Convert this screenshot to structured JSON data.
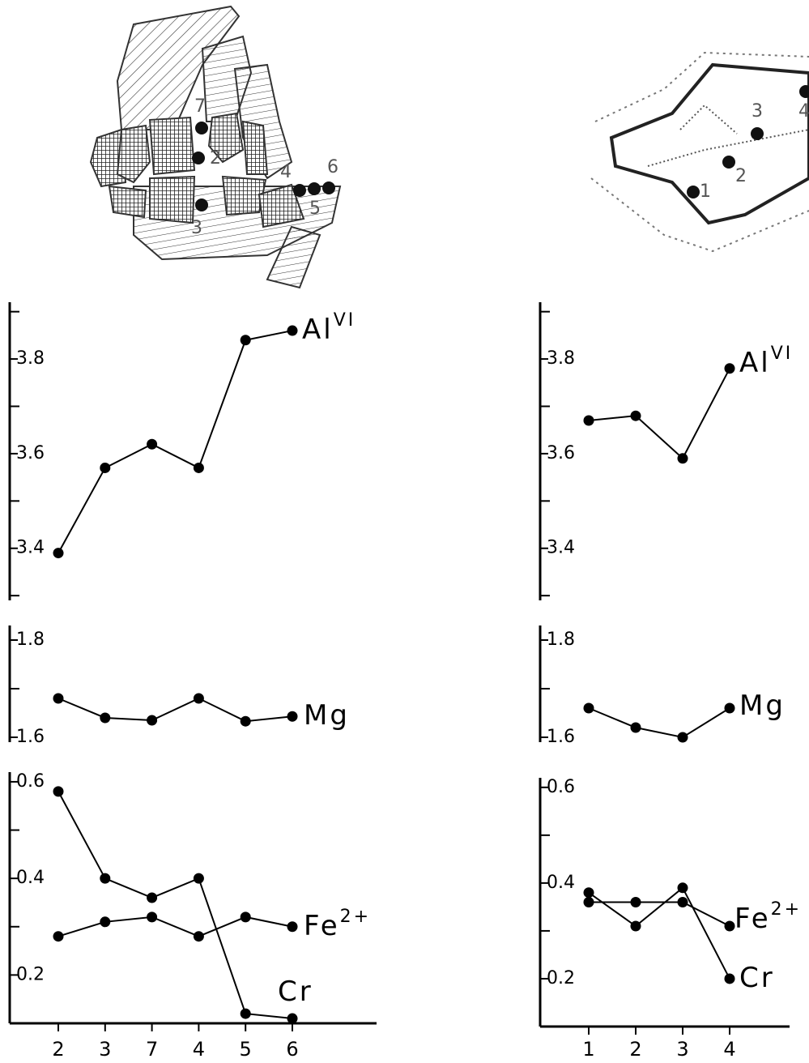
{
  "sketches": [
    {
      "point_labels": [
        "7",
        "2",
        "3",
        "4",
        "5",
        "6"
      ]
    },
    {
      "point_labels": [
        "1",
        "2",
        "3",
        "4"
      ]
    }
  ],
  "chart_data": [
    {
      "type": "line",
      "categories": [
        "2",
        "3",
        "7",
        "4",
        "5",
        "6"
      ],
      "panels": [
        {
          "ylim": [
            3.29,
            3.92
          ],
          "yticks": [
            3.4,
            3.6,
            3.8
          ],
          "yminor": [
            3.3,
            3.5,
            3.7,
            3.9
          ],
          "series": [
            {
              "name": "Al",
              "superscript": "VI",
              "color": "#000",
              "values": [
                3.39,
                3.57,
                3.62,
                3.57,
                3.84,
                3.86
              ]
            }
          ]
        },
        {
          "ylim": [
            1.59,
            1.83
          ],
          "yticks": [
            1.6,
            1.8
          ],
          "yminor": [
            1.7
          ],
          "series": [
            {
              "name": "Mg",
              "color": "#000",
              "values": [
                1.68,
                1.64,
                1.635,
                1.68,
                1.633,
                1.643
              ]
            }
          ]
        },
        {
          "ylim": [
            0.1,
            0.62
          ],
          "yticks": [
            0.2,
            0.4,
            0.6
          ],
          "yminor": [
            0.3,
            0.5
          ],
          "series": [
            {
              "name": "Fe",
              "superscript": "2+",
              "color": "#000",
              "values": [
                0.28,
                0.31,
                0.32,
                0.28,
                0.32,
                0.3
              ]
            },
            {
              "name": "Cr",
              "color": "#000",
              "values": [
                0.58,
                0.4,
                0.36,
                0.4,
                0.12,
                0.11
              ]
            }
          ]
        }
      ]
    },
    {
      "type": "line",
      "categories": [
        "1",
        "2",
        "3",
        "4"
      ],
      "panels": [
        {
          "ylim": [
            3.29,
            3.92
          ],
          "yticks": [
            3.4,
            3.6,
            3.8
          ],
          "yminor": [
            3.3,
            3.5,
            3.7,
            3.9
          ],
          "series": [
            {
              "name": "Al",
              "superscript": "VI",
              "color": "#000",
              "values": [
                3.67,
                3.68,
                3.59,
                3.78
              ]
            }
          ]
        },
        {
          "ylim": [
            1.59,
            1.83
          ],
          "yticks": [
            1.6,
            1.8
          ],
          "yminor": [
            1.7
          ],
          "series": [
            {
              "name": "Mg",
              "color": "#000",
              "values": [
                1.66,
                1.62,
                1.6,
                1.66
              ]
            }
          ]
        },
        {
          "ylim": [
            0.1,
            0.62
          ],
          "yticks": [
            0.2,
            0.4,
            0.6
          ],
          "yminor": [
            0.3,
            0.5
          ],
          "series": [
            {
              "name": "Fe",
              "superscript": "2+",
              "color": "#000",
              "values": [
                0.36,
                0.36,
                0.36,
                0.31
              ]
            },
            {
              "name": "Cr",
              "color": "#000",
              "values": [
                0.38,
                0.31,
                0.39,
                0.2
              ]
            }
          ]
        }
      ]
    }
  ]
}
